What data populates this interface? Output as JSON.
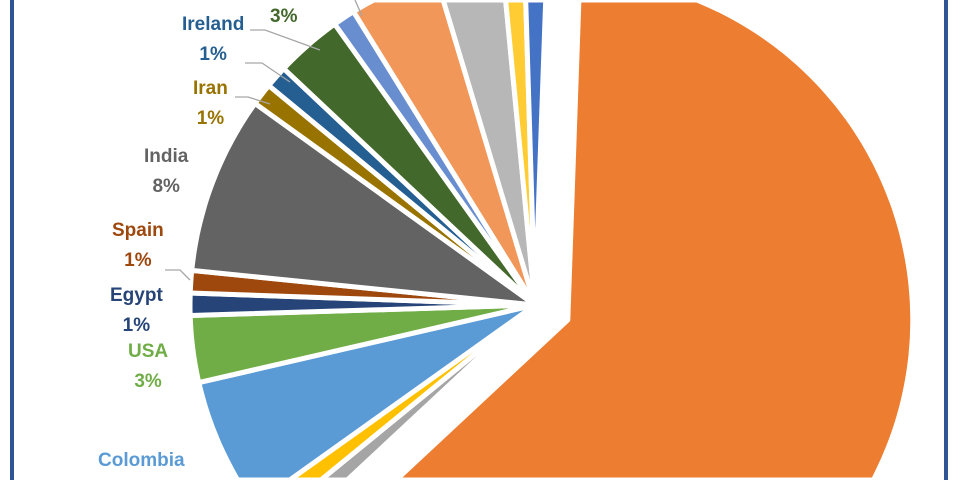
{
  "chart_data": {
    "type": "pie",
    "title": "",
    "exploded_slice": 0,
    "start_angle_deg": 2,
    "slices": [
      {
        "name": null,
        "pct_label": null,
        "value": 60,
        "color": "#ed7d31",
        "text_color": null
      },
      {
        "name": null,
        "pct_label": null,
        "value": 1,
        "color": "#a5a5a5",
        "text_color": null
      },
      {
        "name": null,
        "pct_label": null,
        "value": 1,
        "color": "#ffc000",
        "text_color": null
      },
      {
        "name": "Colombia",
        "pct_label": null,
        "value": 6,
        "color": "#5b9bd5",
        "text_color": "#5b9bd5"
      },
      {
        "name": "USA",
        "pct_label": "3%",
        "value": 3,
        "color": "#70ad47",
        "text_color": "#70ad47"
      },
      {
        "name": "Egypt",
        "pct_label": "1%",
        "value": 1,
        "color": "#264478",
        "text_color": "#264478"
      },
      {
        "name": "Spain",
        "pct_label": "1%",
        "value": 1,
        "color": "#9e480e",
        "text_color": "#9e480e"
      },
      {
        "name": "India",
        "pct_label": "8%",
        "value": 8,
        "color": "#636363",
        "text_color": "#636363"
      },
      {
        "name": "Iran",
        "pct_label": "1%",
        "value": 1,
        "color": "#997300",
        "text_color": "#997300"
      },
      {
        "name": "Ireland",
        "pct_label": "1%",
        "value": 1,
        "color": "#255e91",
        "text_color": "#255e91"
      },
      {
        "name": null,
        "pct_label": "3%",
        "value": 3,
        "color": "#43682b",
        "text_color": "#43682b"
      },
      {
        "name": null,
        "pct_label": null,
        "value": 1,
        "color": "#698ed0",
        "text_color": null
      },
      {
        "name": null,
        "pct_label": null,
        "value": 4,
        "color": "#f1975a",
        "text_color": null
      },
      {
        "name": null,
        "pct_label": null,
        "value": 3,
        "color": "#b7b7b7",
        "text_color": null
      },
      {
        "name": null,
        "pct_label": null,
        "value": 1,
        "color": "#ffcd33",
        "text_color": null
      },
      {
        "name": null,
        "pct_label": null,
        "value": 1,
        "color": "#4472c4",
        "text_color": null
      }
    ]
  }
}
